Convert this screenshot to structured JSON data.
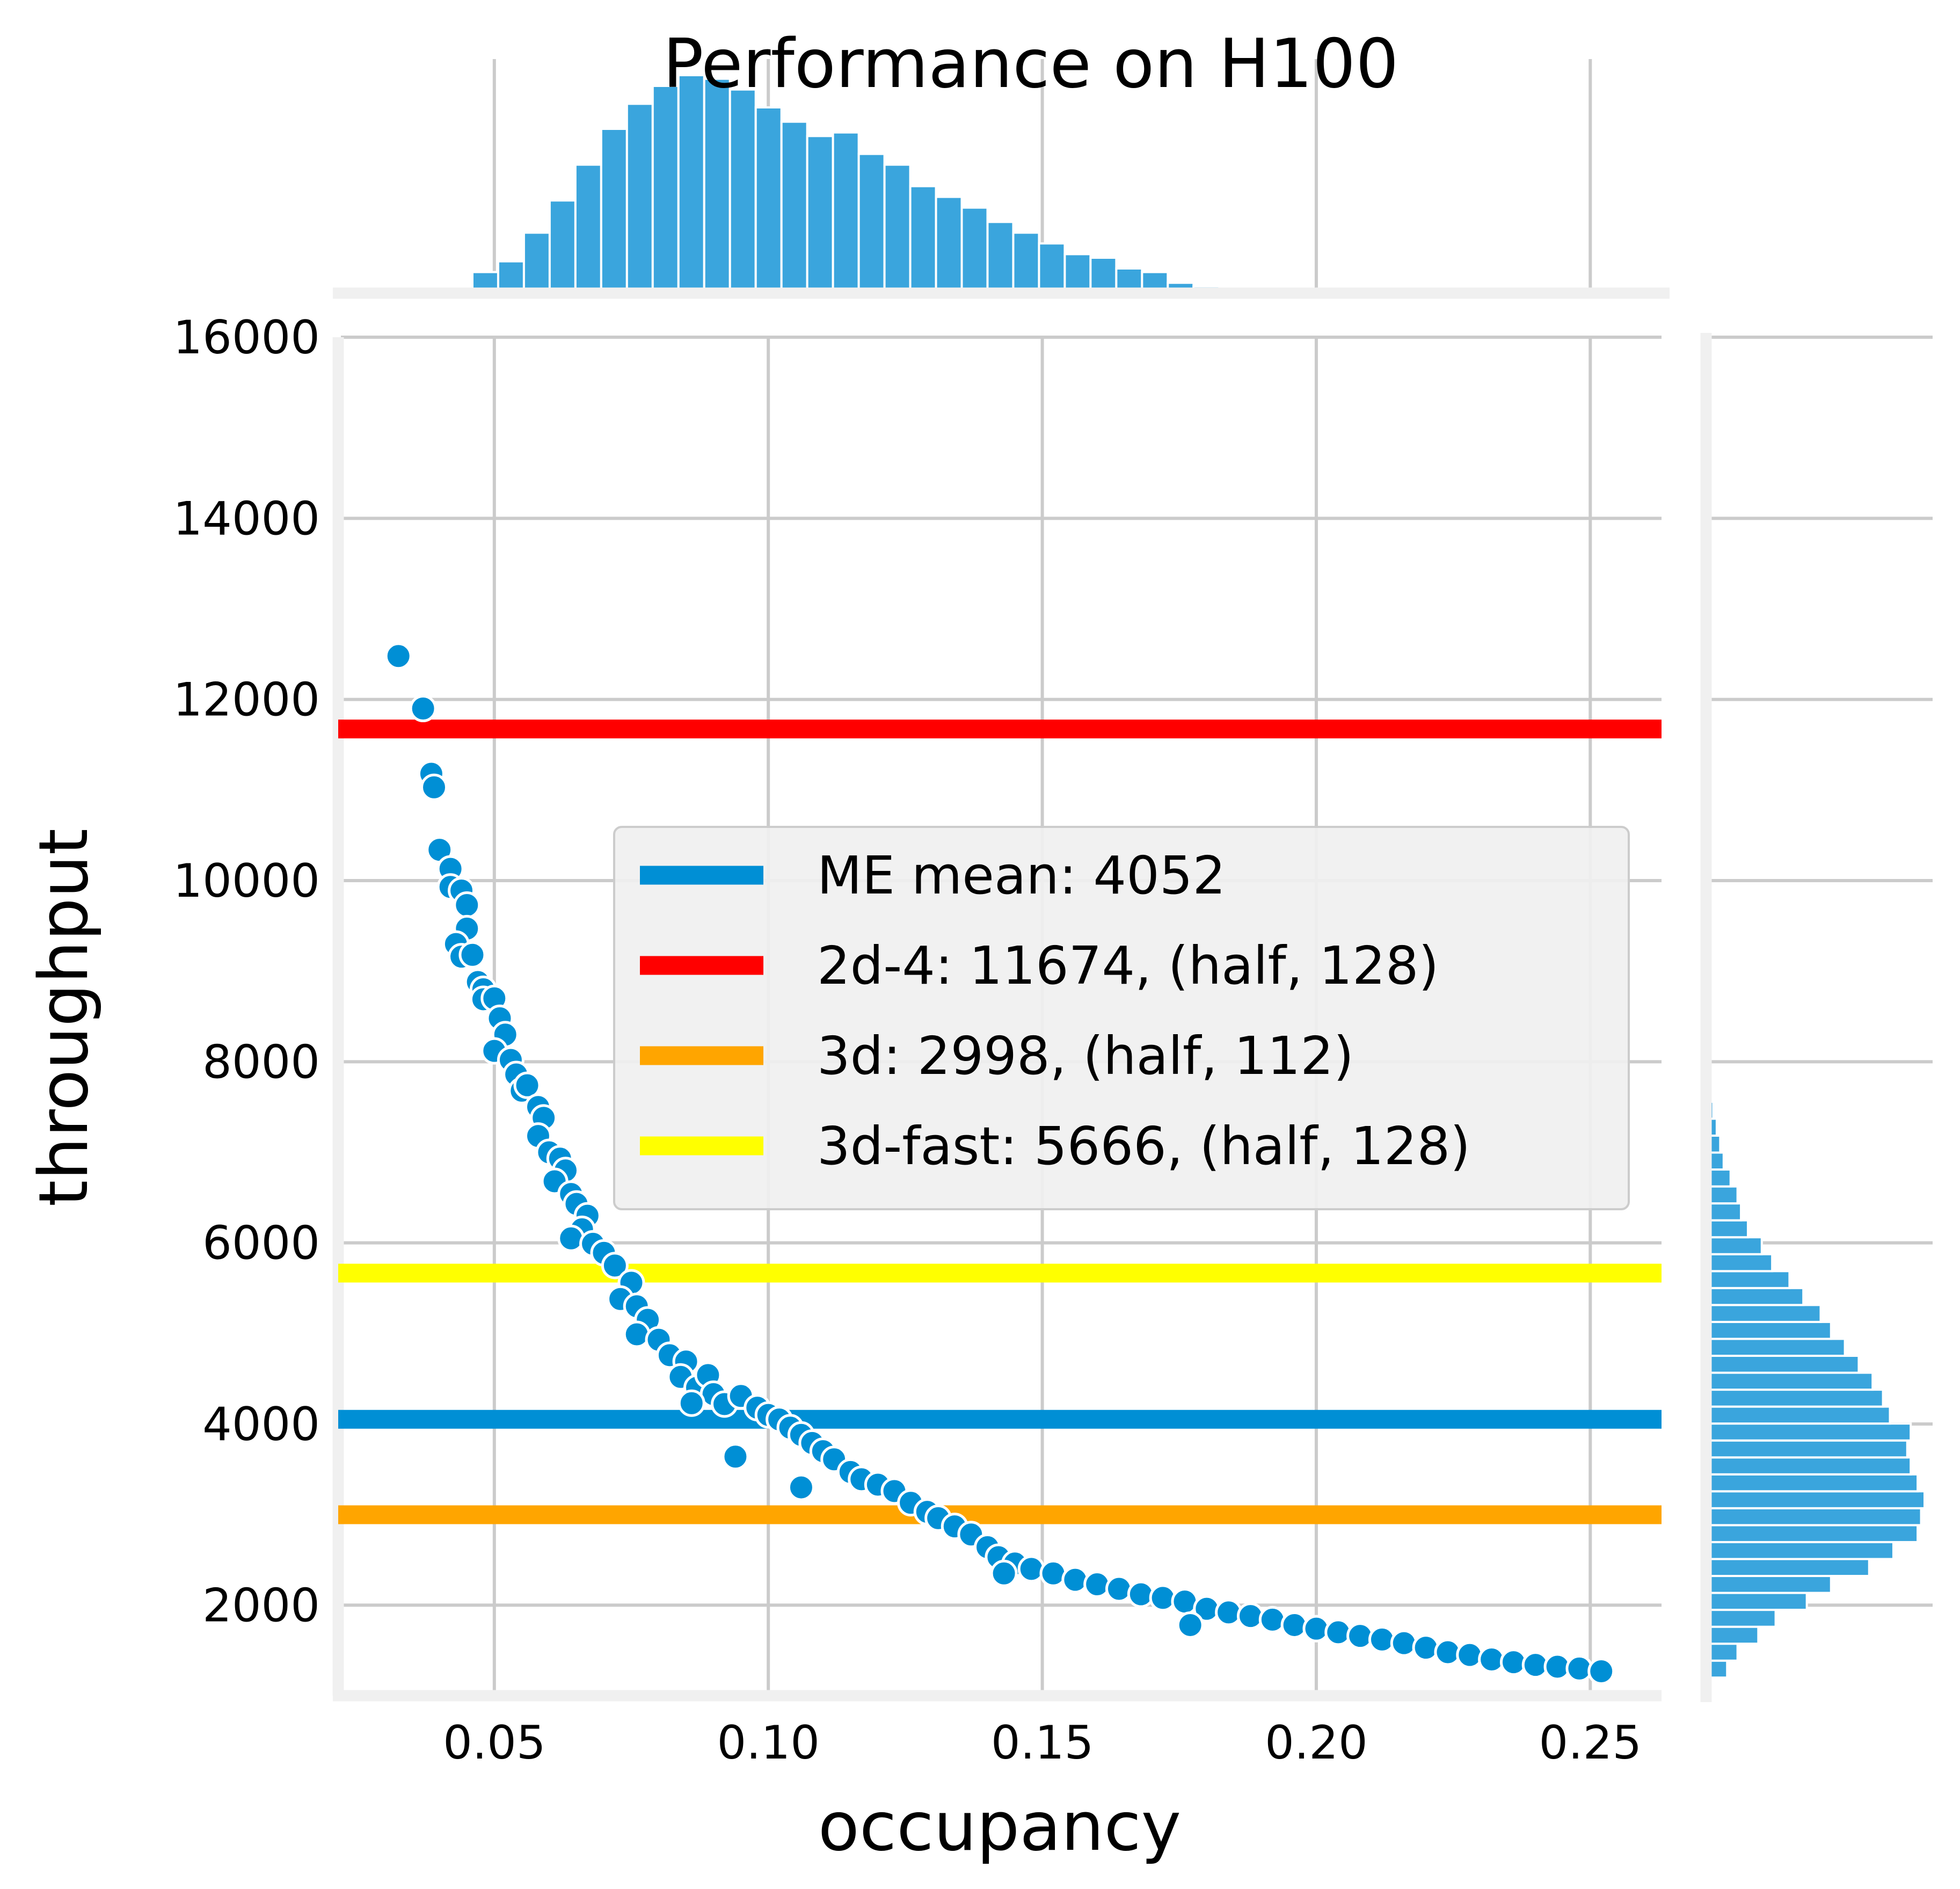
{
  "chart_data": {
    "type": "scatter",
    "title": "Performance on H100",
    "xlabel": "occupancy",
    "ylabel": "throughput",
    "xlim": [
      0.022,
      0.263
    ],
    "ylim": [
      1000,
      16000
    ],
    "xticks": [
      0.05,
      0.1,
      0.15,
      0.2,
      0.25
    ],
    "xtick_labels": [
      "0.05",
      "0.10",
      "0.15",
      "0.20",
      "0.25"
    ],
    "yticks": [
      2000,
      4000,
      6000,
      8000,
      10000,
      12000,
      14000,
      16000
    ],
    "ytick_labels": [
      "2000",
      "4000",
      "6000",
      "8000",
      "10000",
      "12000",
      "14000",
      "16000"
    ],
    "grid": true,
    "legend_position": "center-right",
    "colors": {
      "points": "#008fd5",
      "hist": "#3aa5dd",
      "me_mean": "#008fd5",
      "2d4": "#ff0000",
      "3d": "#ffa500",
      "3dfast": "#ffff00"
    },
    "hlines": [
      {
        "id": "me_mean",
        "label": "ME mean: 4052",
        "y": 4052,
        "color": "#008fd5"
      },
      {
        "id": "2d4",
        "label": "2d-4: 11674, (half, 128)",
        "y": 11674,
        "color": "#ff0000"
      },
      {
        "id": "3d",
        "label": "3d: 2998, (half, 112)",
        "y": 2998,
        "color": "#ffa500"
      },
      {
        "id": "3dfast",
        "label": "3d-fast: 5666, (half, 128)",
        "y": 5666,
        "color": "#ffff00"
      }
    ],
    "scatter_points": [
      [
        0.0325,
        12480
      ],
      [
        0.037,
        11900
      ],
      [
        0.0385,
        11180
      ],
      [
        0.039,
        11030
      ],
      [
        0.04,
        10340
      ],
      [
        0.042,
        10130
      ],
      [
        0.042,
        9930
      ],
      [
        0.044,
        9890
      ],
      [
        0.045,
        9730
      ],
      [
        0.045,
        9470
      ],
      [
        0.043,
        9300
      ],
      [
        0.044,
        9160
      ],
      [
        0.046,
        9180
      ],
      [
        0.047,
        8880
      ],
      [
        0.048,
        8800
      ],
      [
        0.048,
        8690
      ],
      [
        0.05,
        8700
      ],
      [
        0.051,
        8480
      ],
      [
        0.052,
        8300
      ],
      [
        0.05,
        8120
      ],
      [
        0.053,
        8020
      ],
      [
        0.054,
        7860
      ],
      [
        0.055,
        7680
      ],
      [
        0.056,
        7740
      ],
      [
        0.058,
        7500
      ],
      [
        0.059,
        7380
      ],
      [
        0.058,
        7180
      ],
      [
        0.06,
        7000
      ],
      [
        0.062,
        6930
      ],
      [
        0.063,
        6800
      ],
      [
        0.061,
        6680
      ],
      [
        0.064,
        6540
      ],
      [
        0.065,
        6430
      ],
      [
        0.067,
        6300
      ],
      [
        0.066,
        6150
      ],
      [
        0.064,
        6050
      ],
      [
        0.068,
        5990
      ],
      [
        0.07,
        5890
      ],
      [
        0.072,
        5750
      ],
      [
        0.075,
        5560
      ],
      [
        0.073,
        5380
      ],
      [
        0.076,
        5300
      ],
      [
        0.078,
        5150
      ],
      [
        0.076,
        4990
      ],
      [
        0.08,
        4930
      ],
      [
        0.082,
        4760
      ],
      [
        0.085,
        4690
      ],
      [
        0.084,
        4520
      ],
      [
        0.087,
        4400
      ],
      [
        0.089,
        4540
      ],
      [
        0.09,
        4330
      ],
      [
        0.092,
        4220
      ],
      [
        0.095,
        4310
      ],
      [
        0.086,
        4230
      ],
      [
        0.098,
        4180
      ],
      [
        0.1,
        4100
      ],
      [
        0.102,
        4050
      ],
      [
        0.104,
        3960
      ],
      [
        0.106,
        3880
      ],
      [
        0.108,
        3790
      ],
      [
        0.11,
        3700
      ],
      [
        0.112,
        3610
      ],
      [
        0.115,
        3470
      ],
      [
        0.117,
        3390
      ],
      [
        0.12,
        3330
      ],
      [
        0.123,
        3260
      ],
      [
        0.106,
        3300
      ],
      [
        0.094,
        3640
      ],
      [
        0.126,
        3130
      ],
      [
        0.129,
        3030
      ],
      [
        0.131,
        2960
      ],
      [
        0.134,
        2870
      ],
      [
        0.137,
        2780
      ],
      [
        0.14,
        2640
      ],
      [
        0.142,
        2530
      ],
      [
        0.145,
        2460
      ],
      [
        0.143,
        2350
      ],
      [
        0.148,
        2400
      ],
      [
        0.152,
        2350
      ],
      [
        0.156,
        2280
      ],
      [
        0.16,
        2230
      ],
      [
        0.164,
        2180
      ],
      [
        0.168,
        2120
      ],
      [
        0.172,
        2080
      ],
      [
        0.176,
        2040
      ],
      [
        0.18,
        1960
      ],
      [
        0.177,
        1780
      ],
      [
        0.184,
        1920
      ],
      [
        0.188,
        1880
      ],
      [
        0.192,
        1840
      ],
      [
        0.196,
        1780
      ],
      [
        0.2,
        1740
      ],
      [
        0.204,
        1700
      ],
      [
        0.208,
        1660
      ],
      [
        0.212,
        1620
      ],
      [
        0.216,
        1580
      ],
      [
        0.22,
        1530
      ],
      [
        0.224,
        1480
      ],
      [
        0.228,
        1450
      ],
      [
        0.232,
        1400
      ],
      [
        0.236,
        1370
      ],
      [
        0.24,
        1340
      ],
      [
        0.244,
        1320
      ],
      [
        0.248,
        1300
      ],
      [
        0.252,
        1270
      ]
    ],
    "x_hist": {
      "bin_start": 0.046,
      "bin_width": 0.0047,
      "counts": [
        5,
        8,
        16,
        25,
        35,
        45,
        52,
        57,
        60,
        59,
        56,
        51,
        47,
        43,
        44,
        38,
        35,
        29,
        26,
        23,
        19,
        16,
        13,
        10,
        9,
        6,
        5,
        2,
        1
      ]
    },
    "y_hist": {
      "bin_start": 1200,
      "bin_width": 187,
      "counts": [
        5,
        8,
        14,
        19,
        28,
        35,
        46,
        53,
        60,
        61,
        62,
        60,
        58,
        57,
        58,
        52,
        50,
        47,
        43,
        39,
        35,
        32,
        27,
        23,
        18,
        15,
        11,
        9,
        8,
        6,
        4,
        3,
        2,
        1
      ]
    }
  }
}
